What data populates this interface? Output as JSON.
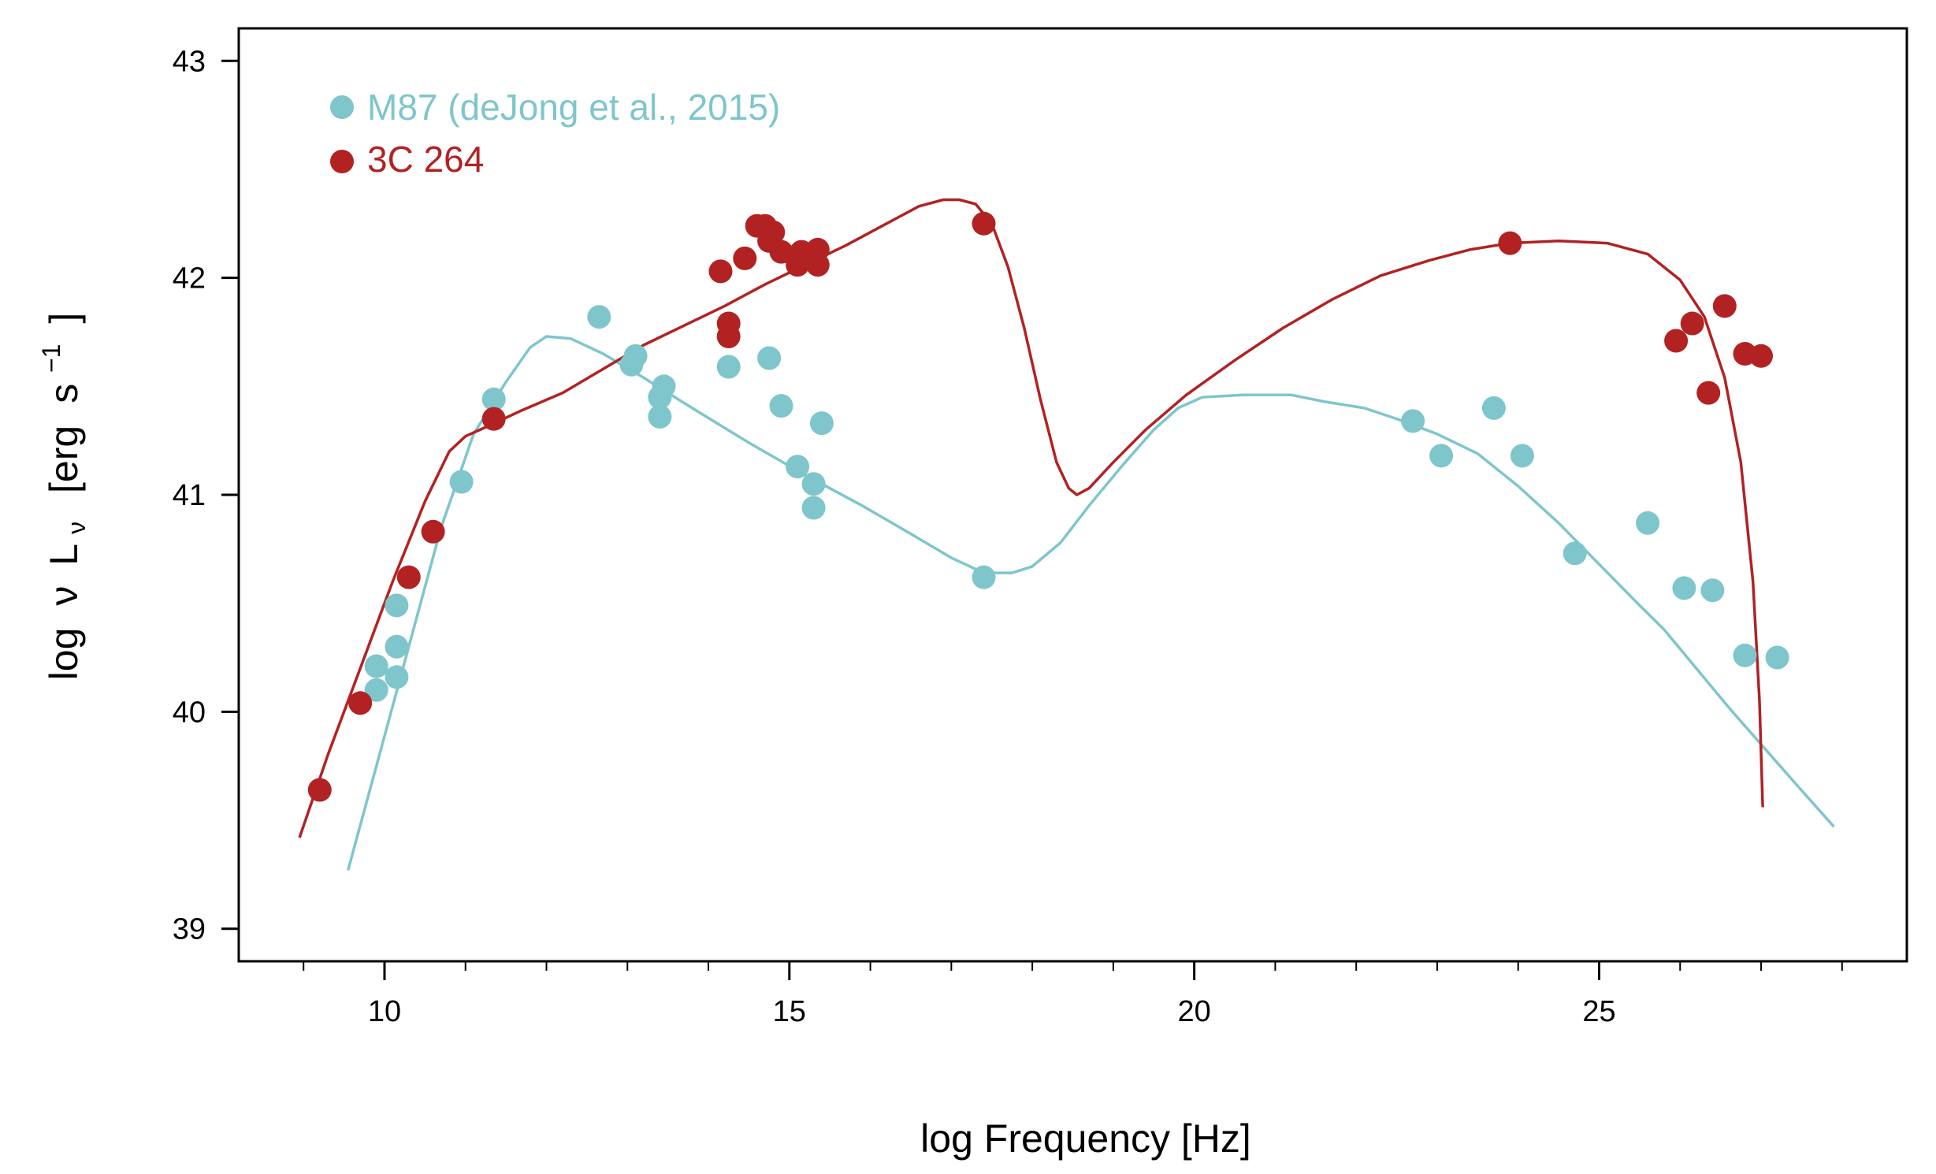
{
  "chart_data": {
    "type": "scatter",
    "title": "",
    "xlabel": "log Frequency [Hz]",
    "ylabel": {
      "prefix": "log",
      "nu": "ν",
      "L": "L",
      "nu_sub": "ν",
      "unit_open": "[erg",
      "s": "s",
      "exp": "−1",
      "unit_close": "]"
    },
    "xlim": [
      8.2,
      28.8
    ],
    "ylim": [
      38.85,
      43.15
    ],
    "xticks": [
      10,
      15,
      20,
      25
    ],
    "xticks_minor": [
      9,
      10,
      11,
      12,
      13,
      14,
      15,
      16,
      17,
      18,
      19,
      20,
      21,
      22,
      23,
      24,
      25,
      26,
      27,
      28
    ],
    "yticks": [
      39,
      40,
      41,
      42,
      43
    ],
    "legend_position": "top-left",
    "series": [
      {
        "name": "M87 (deJong et al., 2015)",
        "color": "#7ec6cc",
        "points": [
          [
            9.9,
            40.1
          ],
          [
            9.9,
            40.21
          ],
          [
            10.15,
            40.16
          ],
          [
            10.15,
            40.3
          ],
          [
            10.15,
            40.49
          ],
          [
            10.95,
            41.06
          ],
          [
            11.35,
            41.44
          ],
          [
            12.65,
            41.82
          ],
          [
            13.05,
            41.6
          ],
          [
            13.1,
            41.64
          ],
          [
            13.4,
            41.36
          ],
          [
            13.4,
            41.45
          ],
          [
            13.45,
            41.5
          ],
          [
            14.25,
            41.59
          ],
          [
            14.75,
            41.63
          ],
          [
            14.9,
            41.41
          ],
          [
            15.1,
            41.13
          ],
          [
            15.3,
            41.05
          ],
          [
            15.3,
            40.94
          ],
          [
            15.4,
            41.33
          ],
          [
            17.4,
            40.62
          ],
          [
            22.7,
            41.34
          ],
          [
            23.05,
            41.18
          ],
          [
            23.7,
            41.4
          ],
          [
            24.05,
            41.18
          ],
          [
            24.7,
            40.73
          ],
          [
            25.6,
            40.87
          ],
          [
            26.05,
            40.57
          ],
          [
            26.4,
            40.56
          ],
          [
            26.8,
            40.26
          ],
          [
            27.2,
            40.25
          ]
        ],
        "model_curve": [
          [
            9.55,
            39.27
          ],
          [
            9.9,
            39.75
          ],
          [
            10.3,
            40.3
          ],
          [
            10.7,
            40.85
          ],
          [
            11.1,
            41.28
          ],
          [
            11.5,
            41.52
          ],
          [
            11.8,
            41.68
          ],
          [
            12.0,
            41.73
          ],
          [
            12.3,
            41.72
          ],
          [
            12.7,
            41.65
          ],
          [
            13.2,
            41.54
          ],
          [
            13.8,
            41.4
          ],
          [
            14.5,
            41.24
          ],
          [
            15.2,
            41.09
          ],
          [
            15.9,
            40.95
          ],
          [
            16.5,
            40.82
          ],
          [
            17.0,
            40.71
          ],
          [
            17.4,
            40.64
          ],
          [
            17.75,
            40.64
          ],
          [
            18.0,
            40.67
          ],
          [
            18.35,
            40.78
          ],
          [
            18.7,
            40.95
          ],
          [
            19.1,
            41.13
          ],
          [
            19.5,
            41.3
          ],
          [
            19.8,
            41.4
          ],
          [
            20.1,
            41.45
          ],
          [
            20.6,
            41.46
          ],
          [
            21.2,
            41.46
          ],
          [
            21.6,
            41.43
          ],
          [
            22.1,
            41.4
          ],
          [
            22.5,
            41.35
          ],
          [
            23.0,
            41.28
          ],
          [
            23.5,
            41.19
          ],
          [
            24.0,
            41.04
          ],
          [
            24.5,
            40.87
          ],
          [
            25.0,
            40.68
          ],
          [
            25.5,
            40.49
          ],
          [
            25.8,
            40.38
          ],
          [
            26.2,
            40.2
          ],
          [
            26.6,
            40.02
          ],
          [
            27.0,
            39.85
          ],
          [
            27.4,
            39.68
          ],
          [
            27.9,
            39.47
          ]
        ]
      },
      {
        "name": "3C 264",
        "color": "#b22222",
        "points": [
          [
            9.2,
            39.64
          ],
          [
            9.7,
            40.04
          ],
          [
            10.3,
            40.62
          ],
          [
            10.6,
            40.83
          ],
          [
            11.35,
            41.35
          ],
          [
            14.15,
            42.03
          ],
          [
            14.25,
            41.79
          ],
          [
            14.25,
            41.73
          ],
          [
            14.45,
            42.09
          ],
          [
            14.6,
            42.24
          ],
          [
            14.7,
            42.24
          ],
          [
            14.75,
            42.17
          ],
          [
            14.8,
            42.21
          ],
          [
            14.9,
            42.12
          ],
          [
            15.1,
            42.06
          ],
          [
            15.15,
            42.12
          ],
          [
            15.35,
            42.06
          ],
          [
            15.35,
            42.13
          ],
          [
            17.4,
            42.25
          ],
          [
            23.9,
            42.16
          ],
          [
            25.95,
            41.71
          ],
          [
            26.15,
            41.79
          ],
          [
            26.35,
            41.47
          ],
          [
            26.55,
            41.87
          ],
          [
            26.8,
            41.65
          ],
          [
            27.0,
            41.64
          ]
        ],
        "model_curve": [
          [
            8.95,
            39.42
          ],
          [
            9.3,
            39.8
          ],
          [
            9.7,
            40.2
          ],
          [
            10.1,
            40.6
          ],
          [
            10.5,
            40.97
          ],
          [
            10.8,
            41.2
          ],
          [
            11.0,
            41.27
          ],
          [
            11.3,
            41.32
          ],
          [
            11.7,
            41.39
          ],
          [
            12.2,
            41.47
          ],
          [
            12.7,
            41.58
          ],
          [
            13.2,
            41.69
          ],
          [
            13.7,
            41.78
          ],
          [
            14.2,
            41.87
          ],
          [
            14.7,
            41.97
          ],
          [
            15.2,
            42.06
          ],
          [
            15.7,
            42.15
          ],
          [
            16.2,
            42.25
          ],
          [
            16.6,
            42.33
          ],
          [
            16.9,
            42.36
          ],
          [
            17.1,
            42.36
          ],
          [
            17.3,
            42.34
          ],
          [
            17.5,
            42.25
          ],
          [
            17.7,
            42.05
          ],
          [
            17.9,
            41.77
          ],
          [
            18.1,
            41.44
          ],
          [
            18.3,
            41.15
          ],
          [
            18.45,
            41.03
          ],
          [
            18.55,
            41.0
          ],
          [
            18.7,
            41.03
          ],
          [
            19.0,
            41.15
          ],
          [
            19.4,
            41.3
          ],
          [
            19.9,
            41.46
          ],
          [
            20.5,
            41.62
          ],
          [
            21.1,
            41.77
          ],
          [
            21.7,
            41.9
          ],
          [
            22.3,
            42.01
          ],
          [
            22.9,
            42.08
          ],
          [
            23.4,
            42.13
          ],
          [
            23.9,
            42.16
          ],
          [
            24.5,
            42.17
          ],
          [
            25.1,
            42.16
          ],
          [
            25.6,
            42.11
          ],
          [
            26.0,
            41.99
          ],
          [
            26.3,
            41.82
          ],
          [
            26.55,
            41.54
          ],
          [
            26.75,
            41.15
          ],
          [
            26.9,
            40.6
          ],
          [
            26.98,
            40.05
          ],
          [
            27.02,
            39.56
          ]
        ]
      }
    ]
  }
}
